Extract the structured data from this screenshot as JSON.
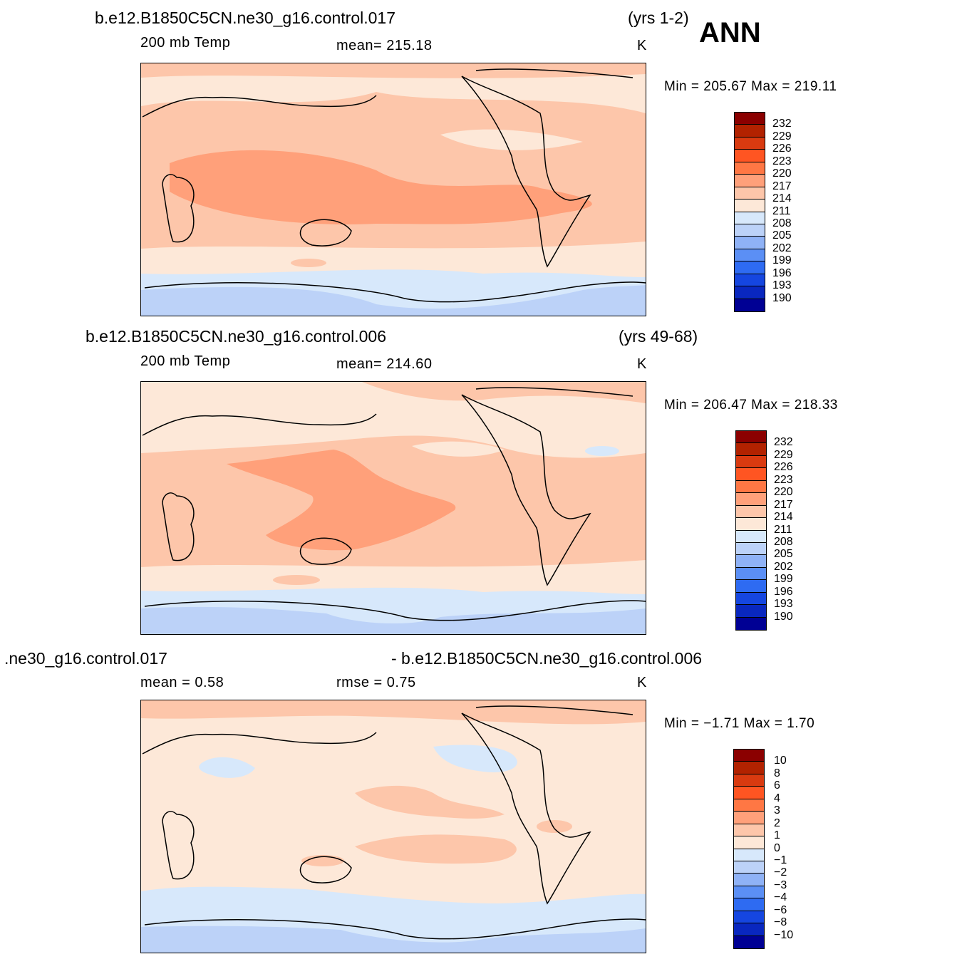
{
  "season": "ANN",
  "panels": [
    {
      "case": "b.e12.B1850C5CN.ne30_g16.control.017",
      "years": "(yrs 1-2)",
      "left": "200 mb  Temp",
      "center": "mean=  215.18",
      "units": "K",
      "minmax": "Min  =  205.67  Max  =  219.11"
    },
    {
      "case": "b.e12.B1850C5CN.ne30_g16.control.006",
      "years": "(yrs 49-68)",
      "left": "200 mb  Temp",
      "center": "mean=  214.60",
      "units": "K",
      "minmax": "Min  =  206.47  Max  =  218.33"
    },
    {
      "case": ".ne30_g16.control.017",
      "case2": "- b.e12.B1850C5CN.ne30_g16.control.006",
      "left": "mean  =     0.58",
      "center": "rmse  =     0.75",
      "units": "K",
      "minmax": "Min  =    −1.71  Max  =      1.70"
    }
  ],
  "colorbar_abs": {
    "labels": [
      "232",
      "229",
      "226",
      "223",
      "220",
      "217",
      "214",
      "211",
      "208",
      "205",
      "202",
      "199",
      "196",
      "193",
      "190"
    ],
    "colors": [
      "#8b0000",
      "#b22200",
      "#d93a10",
      "#ff5522",
      "#ff7744",
      "#ffa07a",
      "#fdc6aa",
      "#fde8d8",
      "#d7e8fb",
      "#bcd2f8",
      "#8fb2f6",
      "#5b8ff5",
      "#2e6bf2",
      "#1546e0",
      "#0927bf",
      "#000094"
    ]
  },
  "colorbar_diff": {
    "labels": [
      "10",
      "8",
      "6",
      "4",
      "3",
      "2",
      "1",
      "0",
      "−1",
      "−2",
      "−3",
      "−4",
      "−6",
      "−8",
      "−10"
    ],
    "colors": [
      "#8b0000",
      "#b22200",
      "#d93a10",
      "#ff5522",
      "#ff7744",
      "#ffa07a",
      "#fdc6aa",
      "#fde8d8",
      "#d7e8fb",
      "#bcd2f8",
      "#8fb2f6",
      "#5b8ff5",
      "#2e6bf2",
      "#1546e0",
      "#0927bf",
      "#000094"
    ]
  }
}
